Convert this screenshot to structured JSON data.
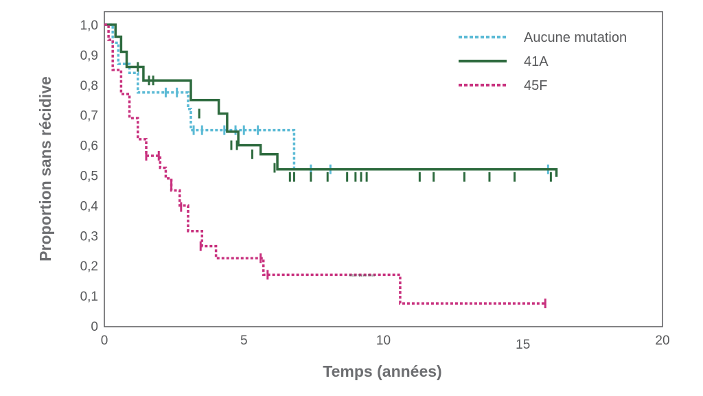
{
  "chart_data": {
    "type": "line",
    "step": true,
    "xlabel": "Temps (années)",
    "ylabel": "Proportion sans récidive",
    "xlim": [
      0,
      20
    ],
    "ylim": [
      0,
      1.0
    ],
    "x_ticks": [
      "0",
      "5",
      "10",
      "15",
      "20"
    ],
    "y_ticks": [
      "0",
      "0,1",
      "0,2",
      "0,3",
      "0,4",
      "0,5",
      "0,6",
      "0,7",
      "0,8",
      "0,9",
      "1,0"
    ],
    "grid": false,
    "legend_position": "top-right",
    "annotation": "Artist Name Here",
    "series": [
      {
        "name": "Aucune mutation",
        "color": "#5bbad5",
        "style": "dashed",
        "x": [
          0,
          0.3,
          0.5,
          0.9,
          1.2,
          2.3,
          3.0,
          3.1,
          6.8,
          16.0
        ],
        "y": [
          1.0,
          0.94,
          0.87,
          0.84,
          0.775,
          0.775,
          0.72,
          0.65,
          0.52,
          0.52
        ],
        "censored": [
          [
            2.2,
            0.775
          ],
          [
            2.6,
            0.775
          ],
          [
            3.2,
            0.65
          ],
          [
            3.5,
            0.65
          ],
          [
            4.3,
            0.65
          ],
          [
            4.7,
            0.65
          ],
          [
            5.0,
            0.65
          ],
          [
            5.5,
            0.65
          ],
          [
            7.4,
            0.52
          ],
          [
            8.1,
            0.52
          ],
          [
            15.9,
            0.52
          ]
        ]
      },
      {
        "name": "41A",
        "color": "#2e6b3f",
        "style": "solid",
        "x": [
          0,
          0.4,
          0.6,
          0.8,
          1.4,
          3.1,
          4.1,
          4.4,
          4.8,
          5.6,
          6.2,
          16.2
        ],
        "y": [
          1.0,
          0.96,
          0.91,
          0.86,
          0.815,
          0.75,
          0.705,
          0.645,
          0.6,
          0.57,
          0.52,
          0.495
        ],
        "censored": [
          [
            1.2,
            0.86
          ],
          [
            1.6,
            0.815
          ],
          [
            1.75,
            0.815
          ],
          [
            3.4,
            0.705
          ],
          [
            4.55,
            0.6
          ],
          [
            4.75,
            0.6
          ],
          [
            5.3,
            0.57
          ],
          [
            6.1,
            0.525
          ],
          [
            6.65,
            0.495
          ],
          [
            6.8,
            0.495
          ],
          [
            7.4,
            0.495
          ],
          [
            8.0,
            0.495
          ],
          [
            8.7,
            0.495
          ],
          [
            9.0,
            0.495
          ],
          [
            9.2,
            0.495
          ],
          [
            9.4,
            0.495
          ],
          [
            11.3,
            0.495
          ],
          [
            11.8,
            0.495
          ],
          [
            12.9,
            0.495
          ],
          [
            13.8,
            0.495
          ],
          [
            14.7,
            0.495
          ],
          [
            16.0,
            0.495
          ]
        ]
      },
      {
        "name": "45F",
        "color": "#c8317e",
        "style": "dashed",
        "x": [
          0,
          0.15,
          0.3,
          0.6,
          0.9,
          1.2,
          1.5,
          2.0,
          2.2,
          2.4,
          2.7,
          3.0,
          3.5,
          4.0,
          5.7,
          10.6,
          15.8
        ],
        "y": [
          1.0,
          0.95,
          0.85,
          0.77,
          0.69,
          0.62,
          0.565,
          0.525,
          0.49,
          0.45,
          0.4,
          0.315,
          0.265,
          0.225,
          0.17,
          0.075,
          0.075
        ],
        "censored": [
          [
            1.5,
            0.565
          ],
          [
            1.95,
            0.565
          ],
          [
            2.4,
            0.47
          ],
          [
            2.75,
            0.395
          ],
          [
            3.45,
            0.265
          ],
          [
            5.6,
            0.225
          ],
          [
            5.85,
            0.17
          ],
          [
            15.8,
            0.075
          ]
        ]
      }
    ]
  }
}
